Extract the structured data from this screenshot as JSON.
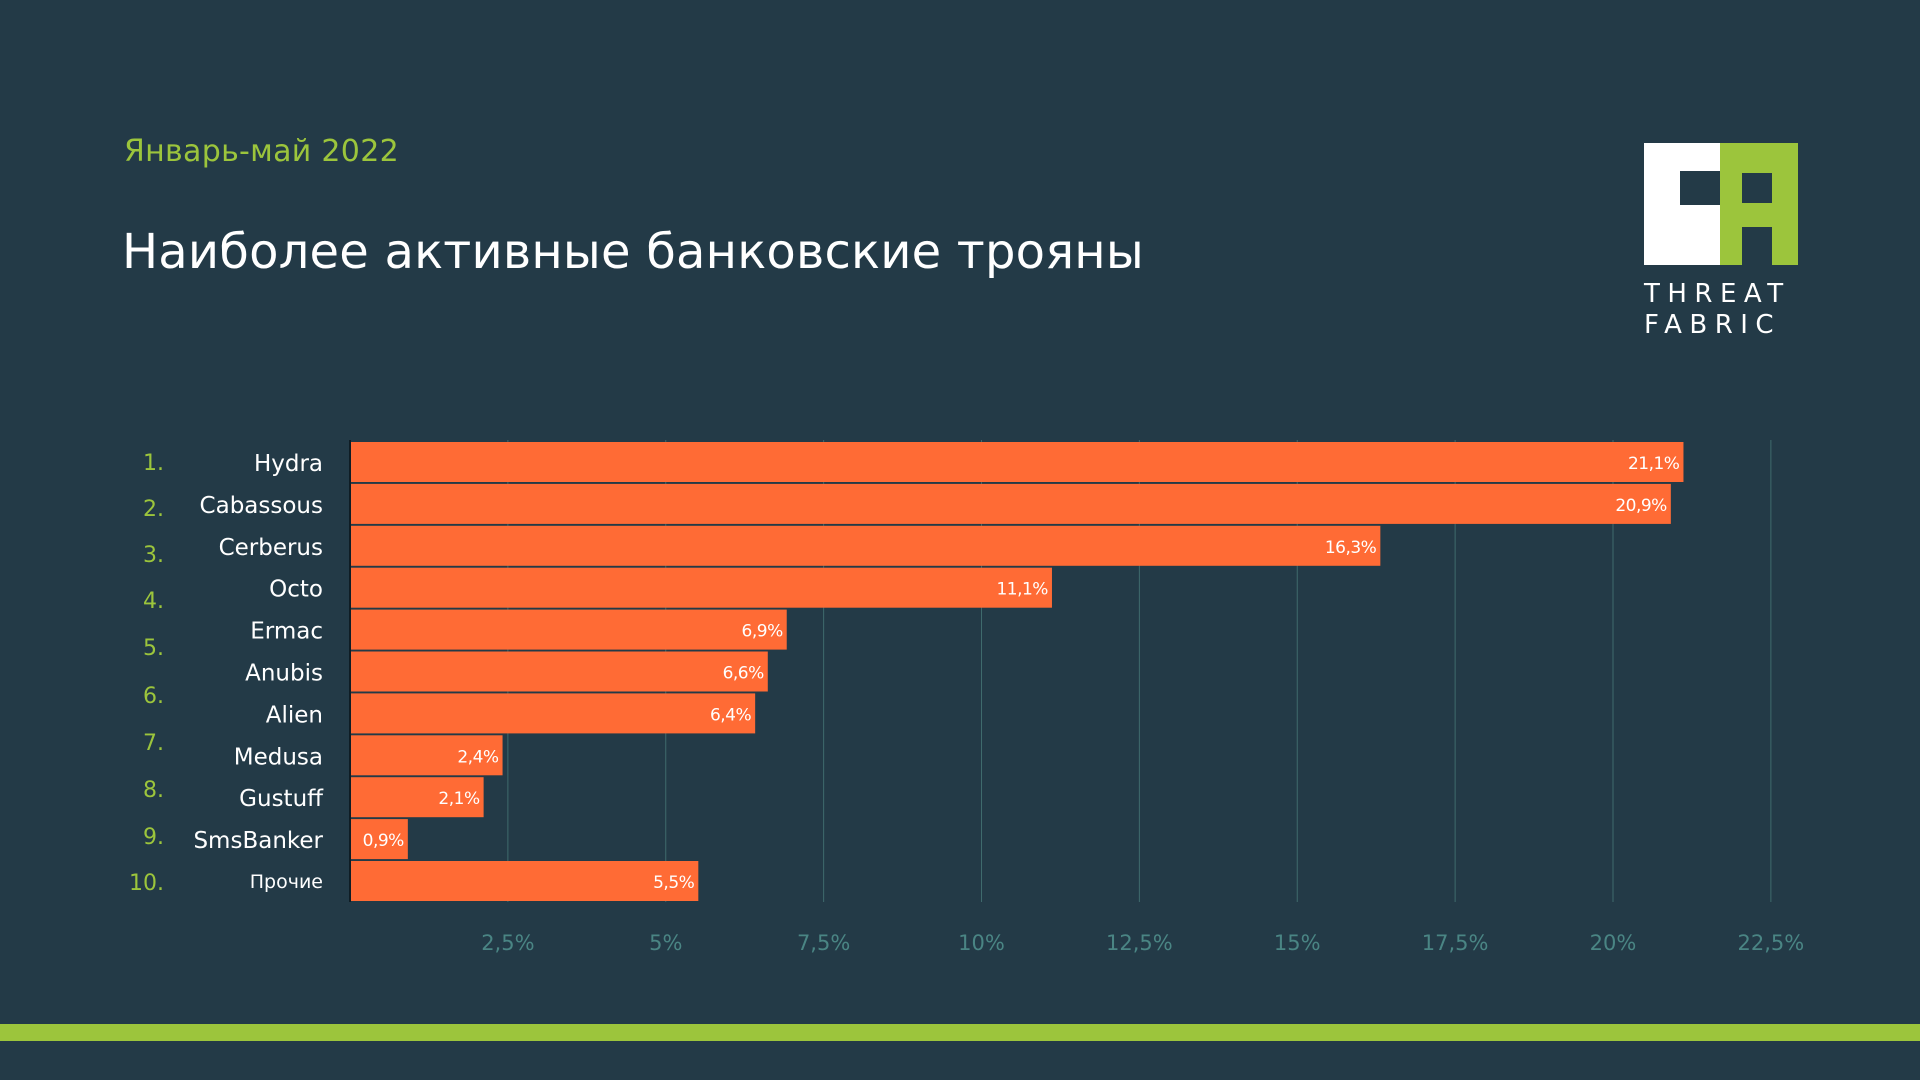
{
  "header": {
    "subtitle": "Январь-май 2022",
    "title": "Наиболее активные банковские трояны"
  },
  "logo": {
    "line1": "THREAT",
    "line2": "FABRIC"
  },
  "colors": {
    "background": "#233a47",
    "bar": "#ff6b35",
    "accent": "#9cc53c",
    "grid": "#3f6a6d",
    "tick": "#4a8584"
  },
  "chart_data": {
    "type": "bar",
    "orientation": "horizontal",
    "ranks": [
      "1.",
      "2.",
      "3.",
      "4.",
      "5.",
      "6.",
      "7.",
      "8.",
      "9.",
      "10."
    ],
    "categories": [
      "Hydra",
      "Cabassous",
      "Cerberus",
      "Octo",
      "Ermac",
      "Anubis",
      "Alien",
      "Medusa",
      "Gustuff",
      "SmsBanker",
      "Прочие"
    ],
    "values": [
      21.1,
      20.9,
      16.3,
      11.1,
      6.9,
      6.6,
      6.4,
      2.4,
      2.1,
      0.9,
      5.5
    ],
    "value_labels": [
      "21,1%",
      "20,9%",
      "16,3%",
      "11,1%",
      "6,9%",
      "6,6%",
      "6,4%",
      "2,4%",
      "2,1%",
      "0,9%",
      "5,5%"
    ],
    "xticks": [
      2.5,
      5,
      7.5,
      10,
      12.5,
      15,
      17.5,
      20,
      22.5
    ],
    "xtick_labels": [
      "2,5%",
      "5%",
      "7,5%",
      "10%",
      "12,5%",
      "15%",
      "17,5%",
      "20%",
      "22,5%"
    ],
    "xlim": [
      0,
      22.5
    ],
    "grid": true,
    "legend": "none"
  }
}
